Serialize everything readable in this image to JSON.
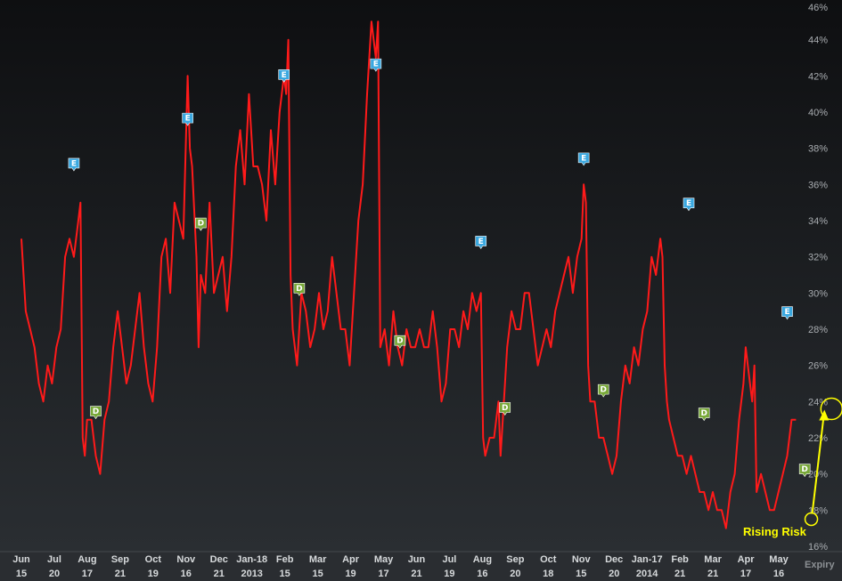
{
  "chart_data": {
    "type": "line",
    "title": "",
    "xlabel": "Expiry",
    "ylabel": "",
    "ylim": [
      16,
      46
    ],
    "yticks": [
      "16%",
      "18%",
      "20%",
      "22%",
      "24%",
      "26%",
      "28%",
      "30%",
      "32%",
      "34%",
      "36%",
      "38%",
      "40%",
      "42%",
      "44%",
      "46%"
    ],
    "grid": false,
    "xticks": [
      {
        "top": "Jun",
        "bottom": "15"
      },
      {
        "top": "Jul",
        "bottom": "20"
      },
      {
        "top": "Aug",
        "bottom": "17"
      },
      {
        "top": "Sep",
        "bottom": "21"
      },
      {
        "top": "Oct",
        "bottom": "19"
      },
      {
        "top": "Nov",
        "bottom": "16"
      },
      {
        "top": "Dec",
        "bottom": "21"
      },
      {
        "top": "Jan-18",
        "bottom": "2013"
      },
      {
        "top": "Feb",
        "bottom": "15"
      },
      {
        "top": "Mar",
        "bottom": "15"
      },
      {
        "top": "Apr",
        "bottom": "19"
      },
      {
        "top": "May",
        "bottom": "17"
      },
      {
        "top": "Jun",
        "bottom": "21"
      },
      {
        "top": "Jul",
        "bottom": "19"
      },
      {
        "top": "Aug",
        "bottom": "16"
      },
      {
        "top": "Sep",
        "bottom": "20"
      },
      {
        "top": "Oct",
        "bottom": "18"
      },
      {
        "top": "Nov",
        "bottom": "15"
      },
      {
        "top": "Dec",
        "bottom": "20"
      },
      {
        "top": "Jan-17",
        "bottom": "2014"
      },
      {
        "top": "Feb",
        "bottom": "21"
      },
      {
        "top": "Mar",
        "bottom": "21"
      },
      {
        "top": "Apr",
        "bottom": "17"
      },
      {
        "top": "May",
        "bottom": "16"
      }
    ],
    "x_range_days": [
      0,
      362
    ],
    "series": [
      {
        "color": "#ff1a1a",
        "points": [
          [
            0,
            33
          ],
          [
            2,
            29
          ],
          [
            4,
            28
          ],
          [
            6,
            27
          ],
          [
            8,
            25
          ],
          [
            10,
            24
          ],
          [
            12,
            26
          ],
          [
            14,
            25
          ],
          [
            16,
            27
          ],
          [
            18,
            28
          ],
          [
            20,
            32
          ],
          [
            22,
            33
          ],
          [
            24,
            32
          ],
          [
            26,
            34
          ],
          [
            27,
            35
          ],
          [
            28,
            22
          ],
          [
            29,
            21
          ],
          [
            30,
            23
          ],
          [
            32,
            23
          ],
          [
            34,
            21
          ],
          [
            36,
            20
          ],
          [
            38,
            23
          ],
          [
            40,
            24
          ],
          [
            42,
            27
          ],
          [
            44,
            29
          ],
          [
            46,
            27
          ],
          [
            48,
            25
          ],
          [
            50,
            26
          ],
          [
            52,
            28
          ],
          [
            54,
            30
          ],
          [
            56,
            27
          ],
          [
            58,
            25
          ],
          [
            60,
            24
          ],
          [
            62,
            27
          ],
          [
            64,
            32
          ],
          [
            66,
            33
          ],
          [
            68,
            30
          ],
          [
            70,
            35
          ],
          [
            72,
            34
          ],
          [
            74,
            33
          ],
          [
            76,
            42
          ],
          [
            77,
            38
          ],
          [
            78,
            37
          ],
          [
            80,
            32
          ],
          [
            81,
            27
          ],
          [
            82,
            31
          ],
          [
            84,
            30
          ],
          [
            86,
            35
          ],
          [
            88,
            30
          ],
          [
            90,
            31
          ],
          [
            92,
            32
          ],
          [
            94,
            29
          ],
          [
            96,
            32
          ],
          [
            98,
            37
          ],
          [
            100,
            39
          ],
          [
            102,
            36
          ],
          [
            104,
            41
          ],
          [
            106,
            37
          ],
          [
            108,
            37
          ],
          [
            110,
            36
          ],
          [
            112,
            34
          ],
          [
            114,
            39
          ],
          [
            116,
            36
          ],
          [
            118,
            40
          ],
          [
            120,
            42
          ],
          [
            121,
            41
          ],
          [
            122,
            44
          ],
          [
            123,
            31
          ],
          [
            124,
            28
          ],
          [
            126,
            26
          ],
          [
            128,
            30
          ],
          [
            130,
            29
          ],
          [
            132,
            27
          ],
          [
            134,
            28
          ],
          [
            136,
            30
          ],
          [
            138,
            28
          ],
          [
            140,
            29
          ],
          [
            142,
            32
          ],
          [
            144,
            30
          ],
          [
            146,
            28
          ],
          [
            148,
            28
          ],
          [
            150,
            26
          ],
          [
            152,
            30
          ],
          [
            154,
            34
          ],
          [
            156,
            36
          ],
          [
            158,
            41
          ],
          [
            160,
            45
          ],
          [
            162,
            43
          ],
          [
            163,
            45
          ],
          [
            164,
            27
          ],
          [
            166,
            28
          ],
          [
            168,
            26
          ],
          [
            170,
            29
          ],
          [
            172,
            27
          ],
          [
            174,
            26
          ],
          [
            176,
            28
          ],
          [
            178,
            27
          ],
          [
            180,
            27
          ],
          [
            182,
            28
          ],
          [
            184,
            27
          ],
          [
            186,
            27
          ],
          [
            188,
            29
          ],
          [
            190,
            27
          ],
          [
            192,
            24
          ],
          [
            194,
            25
          ],
          [
            196,
            28
          ],
          [
            198,
            28
          ],
          [
            200,
            27
          ],
          [
            202,
            29
          ],
          [
            204,
            28
          ],
          [
            206,
            30
          ],
          [
            208,
            29
          ],
          [
            210,
            30
          ],
          [
            211,
            22
          ],
          [
            212,
            21
          ],
          [
            214,
            22
          ],
          [
            216,
            22
          ],
          [
            218,
            24
          ],
          [
            219,
            21
          ],
          [
            220,
            23
          ],
          [
            222,
            27
          ],
          [
            224,
            29
          ],
          [
            226,
            28
          ],
          [
            228,
            28
          ],
          [
            230,
            30
          ],
          [
            232,
            30
          ],
          [
            234,
            28
          ],
          [
            236,
            26
          ],
          [
            238,
            27
          ],
          [
            240,
            28
          ],
          [
            242,
            27
          ],
          [
            244,
            29
          ],
          [
            246,
            30
          ],
          [
            248,
            31
          ],
          [
            250,
            32
          ],
          [
            252,
            30
          ],
          [
            254,
            32
          ],
          [
            256,
            33
          ],
          [
            257,
            36
          ],
          [
            258,
            35
          ],
          [
            259,
            26
          ],
          [
            260,
            24
          ],
          [
            262,
            24
          ],
          [
            264,
            22
          ],
          [
            266,
            22
          ],
          [
            268,
            21
          ],
          [
            270,
            20
          ],
          [
            272,
            21
          ],
          [
            274,
            24
          ],
          [
            276,
            26
          ],
          [
            278,
            25
          ],
          [
            280,
            27
          ],
          [
            282,
            26
          ],
          [
            284,
            28
          ],
          [
            286,
            29
          ],
          [
            288,
            32
          ],
          [
            290,
            31
          ],
          [
            292,
            33
          ],
          [
            293,
            32
          ],
          [
            294,
            26
          ],
          [
            295,
            24
          ],
          [
            296,
            23
          ],
          [
            298,
            22
          ],
          [
            300,
            21
          ],
          [
            302,
            21
          ],
          [
            304,
            20
          ],
          [
            306,
            21
          ],
          [
            308,
            20
          ],
          [
            310,
            19
          ],
          [
            312,
            19
          ],
          [
            314,
            18
          ],
          [
            316,
            19
          ],
          [
            318,
            18
          ],
          [
            320,
            18
          ],
          [
            322,
            17
          ],
          [
            324,
            19
          ],
          [
            326,
            20
          ],
          [
            328,
            23
          ],
          [
            330,
            25
          ],
          [
            331,
            27
          ],
          [
            332,
            26
          ],
          [
            334,
            24
          ],
          [
            335,
            26
          ],
          [
            336,
            19
          ],
          [
            338,
            20
          ],
          [
            340,
            19
          ],
          [
            342,
            18
          ],
          [
            344,
            18
          ],
          [
            346,
            19
          ],
          [
            348,
            20
          ],
          [
            350,
            21
          ],
          [
            352,
            23
          ],
          [
            354,
            23
          ]
        ]
      }
    ],
    "markers": [
      {
        "label": "E",
        "x": 24,
        "y": 37.1,
        "color": "#3aa8e0"
      },
      {
        "label": "E",
        "x": 76,
        "y": 39.6,
        "color": "#3aa8e0"
      },
      {
        "label": "E",
        "x": 120,
        "y": 42.0,
        "color": "#3aa8e0"
      },
      {
        "label": "E",
        "x": 162,
        "y": 42.6,
        "color": "#3aa8e0"
      },
      {
        "label": "E",
        "x": 210,
        "y": 32.8,
        "color": "#3aa8e0"
      },
      {
        "label": "E",
        "x": 257,
        "y": 37.4,
        "color": "#3aa8e0"
      },
      {
        "label": "E",
        "x": 305,
        "y": 34.9,
        "color": "#3aa8e0"
      },
      {
        "label": "E",
        "x": 350,
        "y": 28.9,
        "color": "#3aa8e0"
      },
      {
        "label": "D",
        "x": 34,
        "y": 23.4,
        "color": "#78a838"
      },
      {
        "label": "D",
        "x": 82,
        "y": 33.8,
        "color": "#78a838"
      },
      {
        "label": "D",
        "x": 127,
        "y": 30.2,
        "color": "#78a838"
      },
      {
        "label": "D",
        "x": 173,
        "y": 27.3,
        "color": "#78a838"
      },
      {
        "label": "D",
        "x": 221,
        "y": 23.6,
        "color": "#78a838"
      },
      {
        "label": "D",
        "x": 266,
        "y": 24.6,
        "color": "#78a838"
      },
      {
        "label": "D",
        "x": 312,
        "y": 23.3,
        "color": "#78a838"
      },
      {
        "label": "D",
        "x": 358,
        "y": 20.2,
        "color": "#78a838"
      }
    ],
    "annotation": {
      "text": "Rising Risk",
      "color": "#ffff00",
      "from": [
        361,
        17.5
      ],
      "to": [
        367,
        23.5
      ]
    }
  },
  "expiry_label": "Expiry"
}
